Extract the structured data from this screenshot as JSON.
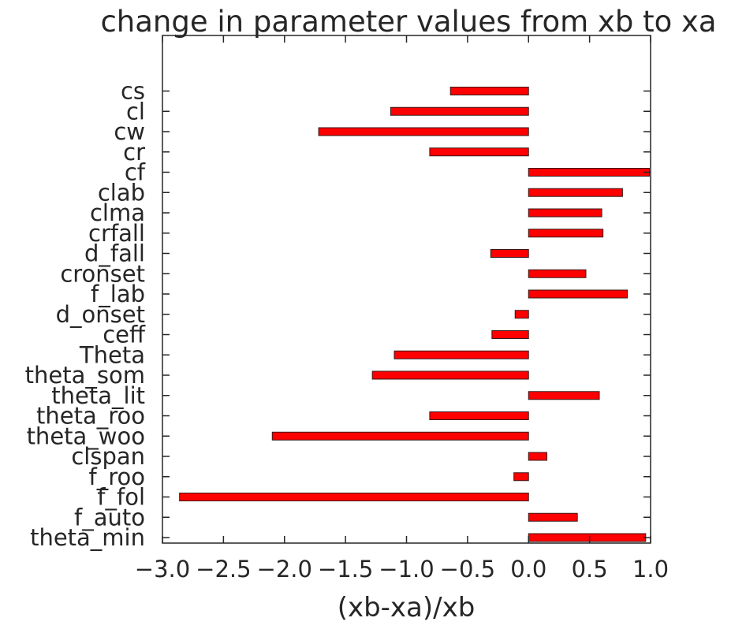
{
  "chart_data": {
    "type": "bar",
    "orientation": "horizontal",
    "title": "change in parameter values from xb to xa",
    "xlabel": "(xb-xa)/xb",
    "ylabel": "",
    "xlim": [
      -3.0,
      1.0
    ],
    "xticks": [
      -3.0,
      -2.5,
      -2.0,
      -1.5,
      -1.0,
      -0.5,
      0.0,
      0.5,
      1.0
    ],
    "xtick_labels": [
      "−3.0",
      "−2.5",
      "−2.0",
      "−1.5",
      "−1.0",
      "−0.5",
      "0.0",
      "0.5",
      "1.0"
    ],
    "grid": false,
    "bar_color": "#ff0000",
    "categories": [
      "theta_min",
      "f_auto",
      "f_fol",
      "f_roo",
      "clspan",
      "theta_woo",
      "theta_roo",
      "theta_lit",
      "theta_som",
      "Theta",
      "ceff",
      "d_onset",
      "f_lab",
      "cronset",
      "d_fall",
      "crfall",
      "clma",
      "clab",
      "cf",
      "cr",
      "cw",
      "cl",
      "cs"
    ],
    "values": [
      0.96,
      0.4,
      -2.86,
      -0.12,
      0.15,
      -2.1,
      -0.81,
      0.58,
      -1.28,
      -1.1,
      -0.3,
      -0.11,
      0.81,
      0.47,
      -0.31,
      0.61,
      0.6,
      0.77,
      0.99,
      -0.81,
      -1.72,
      -1.13,
      -0.64
    ]
  }
}
